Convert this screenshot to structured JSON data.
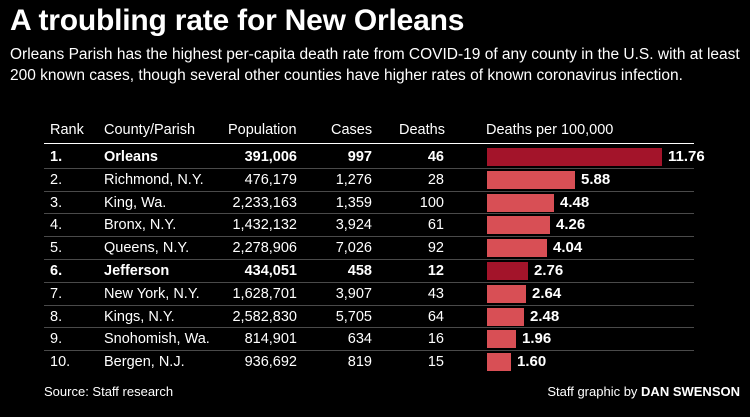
{
  "title": "A troubling rate for New Orleans",
  "subtitle": "Orleans Parish has the highest per-capita death rate from COVID-19 of any county in the U.S. with at least 200 known cases, though several other counties have higher rates of known coronavirus infection.",
  "headers": {
    "rank": "Rank",
    "county": "County/Parish",
    "population": "Population",
    "cases": "Cases",
    "deaths": "Deaths",
    "rate": "Deaths per 100,000"
  },
  "colors": {
    "highlight_bar": "#a3142a",
    "bar": "#d84f55",
    "background": "#000000"
  },
  "source": "Source: Staff research",
  "credit_prefix": "Staff graphic by ",
  "credit_name": "DAN SWENSON",
  "chart_data": {
    "type": "table",
    "bar_column": "Deaths per 100,000",
    "rows": [
      {
        "rank": "1.",
        "county": "Orleans",
        "population": "391,006",
        "cases": "997",
        "deaths": "46",
        "rate": 11.76,
        "rate_label": "11.76",
        "highlight": true
      },
      {
        "rank": "2.",
        "county": "Richmond, N.Y.",
        "population": "476,179",
        "cases": "1,276",
        "deaths": "28",
        "rate": 5.88,
        "rate_label": "5.88",
        "highlight": false
      },
      {
        "rank": "3.",
        "county": "King, Wa.",
        "population": "2,233,163",
        "cases": "1,359",
        "deaths": "100",
        "rate": 4.48,
        "rate_label": "4.48",
        "highlight": false
      },
      {
        "rank": "4.",
        "county": "Bronx, N.Y.",
        "population": "1,432,132",
        "cases": "3,924",
        "deaths": "61",
        "rate": 4.26,
        "rate_label": "4.26",
        "highlight": false
      },
      {
        "rank": "5.",
        "county": "Queens, N.Y.",
        "population": "2,278,906",
        "cases": "7,026",
        "deaths": "92",
        "rate": 4.04,
        "rate_label": "4.04",
        "highlight": false
      },
      {
        "rank": "6.",
        "county": "Jefferson",
        "population": "434,051",
        "cases": "458",
        "deaths": "12",
        "rate": 2.76,
        "rate_label": "2.76",
        "highlight": true
      },
      {
        "rank": "7.",
        "county": "New York, N.Y.",
        "population": "1,628,701",
        "cases": "3,907",
        "deaths": "43",
        "rate": 2.64,
        "rate_label": "2.64",
        "highlight": false
      },
      {
        "rank": "8.",
        "county": "Kings, N.Y.",
        "population": "2,582,830",
        "cases": "5,705",
        "deaths": "64",
        "rate": 2.48,
        "rate_label": "2.48",
        "highlight": false
      },
      {
        "rank": "9.",
        "county": "Snohomish, Wa.",
        "population": "814,901",
        "cases": "634",
        "deaths": "16",
        "rate": 1.96,
        "rate_label": "1.96",
        "highlight": false
      },
      {
        "rank": "10.",
        "county": "Bergen, N.J.",
        "population": "936,692",
        "cases": "819",
        "deaths": "15",
        "rate": 1.6,
        "rate_label": "1.60",
        "highlight": false
      }
    ]
  }
}
